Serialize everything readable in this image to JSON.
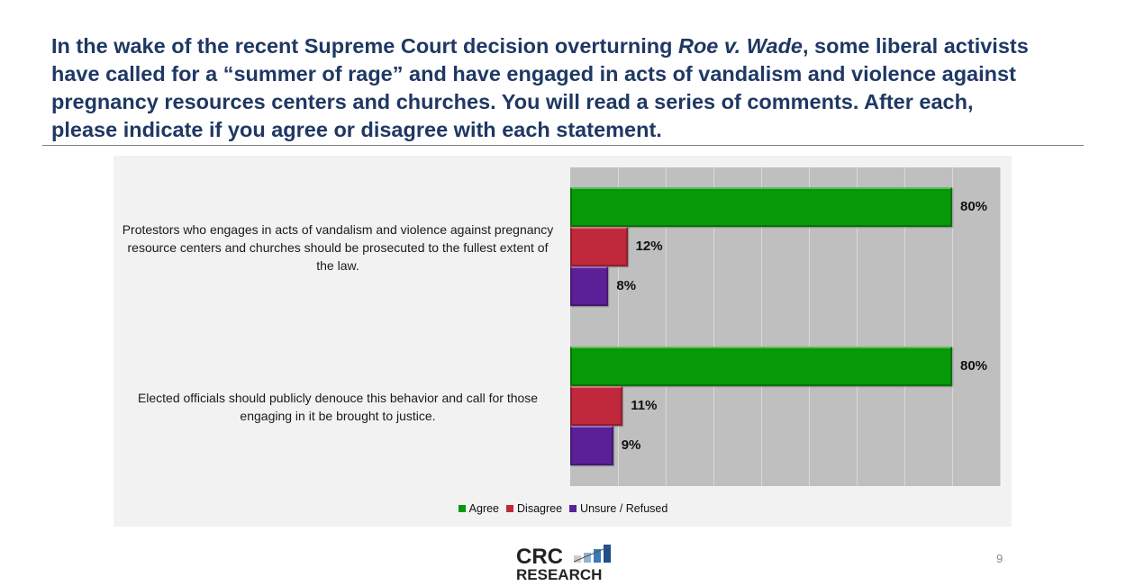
{
  "title": {
    "pre": "In the wake of the recent Supreme Court decision overturning ",
    "italic": "Roe v. Wade",
    "post": ", some liberal activists have called for a “summer of rage” and have engaged in acts of vandalism and violence against pregnancy resources centers and churches. You will read a series of comments. After each, please indicate if you agree or disagree with each statement."
  },
  "chart_data": {
    "type": "bar",
    "orientation": "horizontal",
    "xlim": [
      0,
      90
    ],
    "grid": true,
    "legend_position": "bottom",
    "categories": [
      "Protestors who engages in acts of vandalism and violence against pregnancy resource centers and churches should be prosecuted to the fullest extent of the law.",
      "Elected officials should publicly denouce this behavior and call for those engaging in it be brought to justice."
    ],
    "series": [
      {
        "name": "Agree",
        "color": "#079907",
        "values": [
          80,
          80
        ],
        "labels": [
          "80%",
          "80%"
        ]
      },
      {
        "name": "Disagree",
        "color": "#c0283c",
        "values": [
          12,
          11
        ],
        "labels": [
          "12%",
          "11%"
        ]
      },
      {
        "name": "Unsure / Refused",
        "color": "#5b2098",
        "values": [
          8,
          9
        ],
        "labels": [
          "8%",
          "9%"
        ]
      }
    ]
  },
  "logo": {
    "line1": "CRC",
    "line2": "RESEARCH"
  },
  "page_number": "9"
}
